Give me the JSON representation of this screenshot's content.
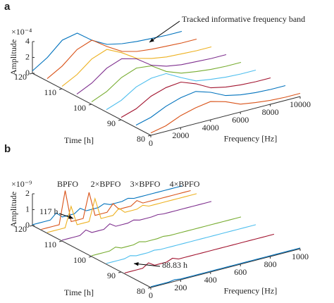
{
  "chart_data": [
    {
      "type": "waterfall",
      "panel_label": "a",
      "xlabel": "Frequency [Hz]",
      "ylabel": "Time [h]",
      "zlabel": "Amplitude",
      "z_exponent_label": "×10⁻⁴",
      "x": [
        0,
        1000,
        2000,
        3000,
        4000,
        5000,
        6000,
        7000,
        8000,
        9000,
        10000
      ],
      "xlim": [
        0,
        10000
      ],
      "xticks": [
        0,
        2000,
        4000,
        6000,
        8000,
        10000
      ],
      "ylim": [
        80,
        120
      ],
      "yticks": [
        80,
        90,
        100,
        110,
        120
      ],
      "zlim": [
        0,
        4
      ],
      "zticks": [
        0,
        2,
        4
      ],
      "annotations": [
        "Tracked informative frequency band"
      ],
      "series": [
        {
          "time": 120,
          "color": "#0072bd",
          "values": [
            0.3,
            1.5,
            3.2,
            3.6,
            2.2,
            1.2,
            0.8,
            0.6,
            0.5,
            0.4,
            0.4
          ]
        },
        {
          "time": 115,
          "color": "#d95319",
          "values": [
            0.3,
            1.4,
            3.0,
            3.7,
            2.4,
            1.3,
            0.8,
            0.6,
            0.5,
            0.4,
            0.4
          ]
        },
        {
          "time": 110,
          "color": "#edb120",
          "values": [
            0.3,
            1.3,
            2.8,
            3.5,
            2.6,
            1.4,
            0.9,
            0.6,
            0.5,
            0.4,
            0.4
          ]
        },
        {
          "time": 105,
          "color": "#7e2f8e",
          "values": [
            0.3,
            1.2,
            2.6,
            3.3,
            2.8,
            1.5,
            0.9,
            0.6,
            0.5,
            0.4,
            0.4
          ]
        },
        {
          "time": 100,
          "color": "#77ac30",
          "values": [
            0.3,
            1.1,
            2.4,
            3.1,
            2.9,
            1.7,
            1.0,
            0.7,
            0.5,
            0.4,
            0.4
          ]
        },
        {
          "time": 95,
          "color": "#4dbeee",
          "values": [
            0.3,
            1.0,
            2.2,
            2.8,
            2.9,
            1.9,
            1.0,
            0.7,
            0.5,
            0.4,
            0.4
          ]
        },
        {
          "time": 90,
          "color": "#a2142f",
          "values": [
            0.3,
            0.9,
            2.0,
            2.6,
            2.8,
            2.1,
            1.1,
            0.7,
            0.5,
            0.4,
            0.4
          ]
        },
        {
          "time": 85,
          "color": "#0072bd",
          "values": [
            0.3,
            0.8,
            1.7,
            2.3,
            2.6,
            2.0,
            1.1,
            0.7,
            0.5,
            0.4,
            0.4
          ]
        },
        {
          "time": 80,
          "color": "#d95319",
          "values": [
            0.3,
            0.7,
            1.5,
            2.0,
            2.3,
            1.8,
            1.0,
            0.7,
            0.5,
            0.4,
            0.4
          ]
        }
      ]
    },
    {
      "type": "waterfall",
      "panel_label": "b",
      "xlabel": "Frequency [Hz]",
      "ylabel": "Time [h]",
      "zlabel": "Amplitude",
      "z_exponent_label": "×10⁻⁹",
      "x": [
        0,
        40,
        80,
        120,
        160,
        200,
        240,
        280,
        320,
        360,
        400,
        440,
        480,
        520,
        560,
        600,
        640,
        680,
        720,
        760,
        800,
        840,
        880,
        920,
        960,
        1000
      ],
      "xlim": [
        0,
        1000
      ],
      "xticks": [
        0,
        200,
        400,
        600,
        800,
        1000
      ],
      "ylim": [
        80,
        120
      ],
      "yticks": [
        80,
        90,
        100,
        110,
        120
      ],
      "zlim": [
        0,
        2
      ],
      "zticks": [
        0,
        1,
        2
      ],
      "annotations": [
        "BPFO",
        "2×BPFO",
        "3×BPFO",
        "4×BPFO",
        "117 h",
        "88.83 h"
      ],
      "series": [
        {
          "time": 120,
          "color": "#0072bd",
          "values": [
            0.05,
            0.05,
            0.05,
            0.05,
            0.4,
            0.05,
            0.05,
            0.05,
            0.3,
            0.05,
            0.05,
            0.05,
            0.2,
            0.05,
            0.05,
            0.05,
            0.15,
            0.05,
            0.05,
            0.05,
            0.05,
            0.05,
            0.05,
            0.05,
            0.05,
            0.05
          ]
        },
        {
          "time": 117,
          "color": "#d95319",
          "values": [
            0.05,
            0.05,
            0.05,
            0.05,
            2.1,
            0.05,
            0.05,
            0.05,
            1.6,
            0.05,
            0.05,
            0.05,
            0.5,
            0.05,
            0.05,
            0.05,
            0.3,
            0.05,
            0.05,
            0.05,
            0.05,
            0.05,
            0.05,
            0.05,
            0.05,
            0.05
          ]
        },
        {
          "time": 115,
          "color": "#edb120",
          "values": [
            0.05,
            0.05,
            0.05,
            0.05,
            1.3,
            0.05,
            0.05,
            0.05,
            1.4,
            0.05,
            0.05,
            0.05,
            0.4,
            0.05,
            0.05,
            0.05,
            0.2,
            0.05,
            0.05,
            0.05,
            0.05,
            0.05,
            0.05,
            0.05,
            0.05,
            0.05
          ]
        },
        {
          "time": 110,
          "color": "#7e2f8e",
          "values": [
            0.05,
            0.05,
            0.05,
            0.05,
            0.3,
            0.05,
            0.05,
            0.05,
            0.3,
            0.05,
            0.05,
            0.05,
            0.15,
            0.05,
            0.05,
            0.05,
            0.1,
            0.05,
            0.05,
            0.05,
            0.05,
            0.05,
            0.05,
            0.05,
            0.05,
            0.05
          ]
        },
        {
          "time": 100,
          "color": "#77ac30",
          "values": [
            0.05,
            0.05,
            0.05,
            0.05,
            0.2,
            0.05,
            0.05,
            0.05,
            0.15,
            0.05,
            0.05,
            0.05,
            0.1,
            0.05,
            0.05,
            0.05,
            0.05,
            0.05,
            0.05,
            0.05,
            0.05,
            0.05,
            0.05,
            0.05,
            0.05,
            0.05
          ]
        },
        {
          "time": 95,
          "color": "#4dbeee",
          "values": [
            0.05,
            0.05,
            0.05,
            0.05,
            0.15,
            0.05,
            0.05,
            0.05,
            0.1,
            0.05,
            0.05,
            0.05,
            0.05,
            0.05,
            0.05,
            0.05,
            0.05,
            0.05,
            0.05,
            0.05,
            0.05,
            0.05,
            0.05,
            0.05,
            0.05,
            0.05
          ]
        },
        {
          "time": 88.83,
          "color": "#a2142f",
          "values": [
            0.05,
            0.05,
            0.05,
            0.05,
            0.3,
            0.05,
            0.05,
            0.05,
            0.2,
            0.05,
            0.05,
            0.05,
            0.05,
            0.05,
            0.05,
            0.05,
            0.05,
            0.05,
            0.05,
            0.05,
            0.05,
            0.05,
            0.05,
            0.05,
            0.05,
            0.05
          ]
        },
        {
          "time": 80,
          "color": "#0072bd",
          "values": [
            0.05,
            0.05,
            0.05,
            0.05,
            0.1,
            0.05,
            0.05,
            0.05,
            0.05,
            0.05,
            0.05,
            0.05,
            0.05,
            0.05,
            0.05,
            0.05,
            0.05,
            0.05,
            0.05,
            0.05,
            0.05,
            0.05,
            0.05,
            0.05,
            0.05,
            0.05
          ]
        }
      ]
    }
  ]
}
